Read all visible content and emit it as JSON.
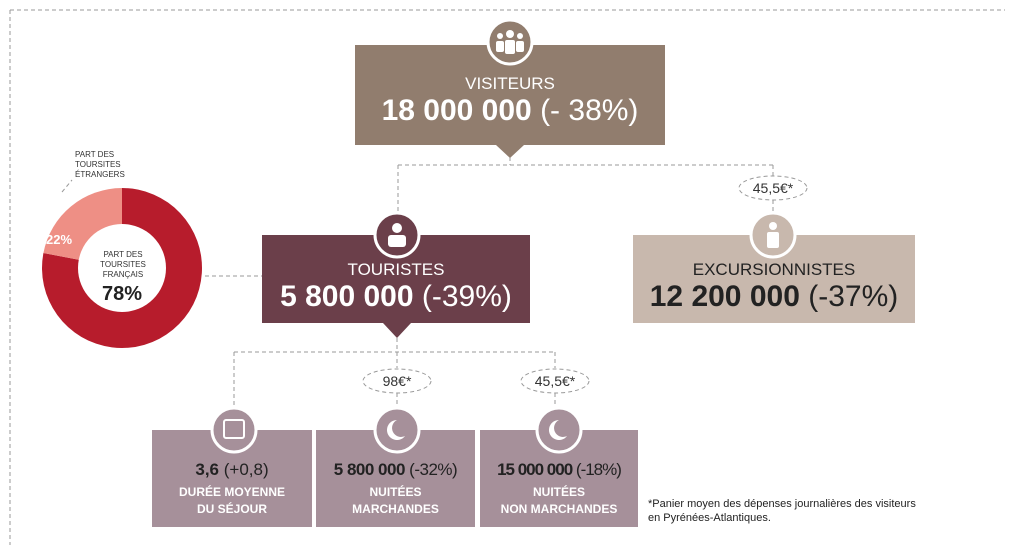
{
  "nodes": [
    {
      "label": "VISITEURS",
      "value": "18 000 000",
      "change": "(- 38%)"
    },
    {
      "label": "TOURISTES",
      "value": "5 800 000",
      "change": "(-39%)"
    },
    {
      "label": "EXCURSIONNISTES",
      "value": "12 200 000",
      "change": "(-37%)"
    }
  ],
  "prices": [
    "45,5€*",
    "98€*",
    "45,5€*"
  ],
  "stats": [
    {
      "value": "3,6",
      "change": "(+0,8)",
      "label": [
        "DURÉE MOYENNE",
        "DU SÉJOUR"
      ]
    },
    {
      "value": "5 800 000",
      "change": "(-32%)",
      "label": [
        "NUITÉES",
        "MARCHANDES"
      ]
    },
    {
      "value": "15 000 000",
      "change": "(-18%)",
      "label": [
        "NUITÉES",
        "NON MARCHANDES"
      ]
    }
  ],
  "footnote": [
    "*Panier moyen des dépenses journalières des visiteurs",
    "en Pyrénées-Atlantiques."
  ],
  "chart_data": {
    "type": "pie",
    "categories": [
      "PART DES TOURSITES FRANÇAIS",
      "PART DES TOURSITES ÉTRANGERS"
    ],
    "values": [
      78,
      22
    ],
    "value_labels": [
      "78%",
      "22%"
    ],
    "colors": [
      "#b71c2c",
      "#ee8f85"
    ]
  }
}
